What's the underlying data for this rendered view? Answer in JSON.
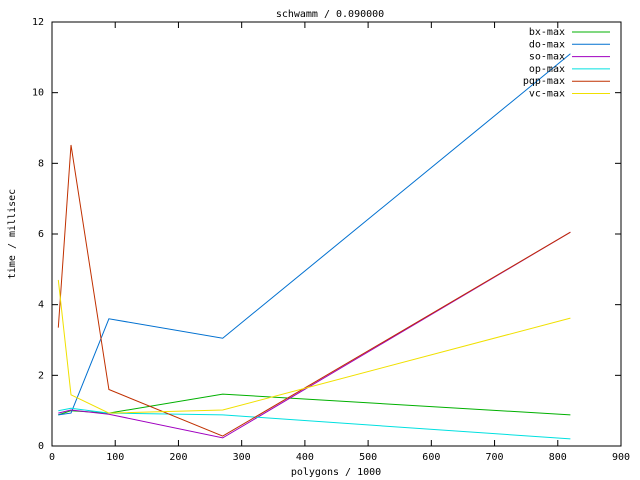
{
  "chart_data": {
    "type": "line",
    "title": "schwamm / 0.090000",
    "x_label": "polygons / 1000",
    "y_label": "time / millisec",
    "x": [
      10,
      30,
      90,
      270,
      820
    ],
    "xlim": [
      0,
      900
    ],
    "xticks": [
      0,
      100,
      200,
      300,
      400,
      500,
      600,
      700,
      800,
      900
    ],
    "ylim": [
      0,
      12
    ],
    "yticks": [
      0,
      2,
      4,
      6,
      8,
      10,
      12
    ],
    "legend": "top-right",
    "series": [
      {
        "name": "bx-max",
        "color": "#00b000",
        "values": [
          0.88,
          1.0,
          0.93,
          1.47,
          0.88
        ]
      },
      {
        "name": "do-max",
        "color": "#0070d0",
        "values": [
          0.88,
          0.93,
          3.6,
          3.05,
          11.1
        ]
      },
      {
        "name": "so-max",
        "color": "#a000c0",
        "values": [
          0.93,
          1.02,
          0.9,
          0.23,
          6.05
        ]
      },
      {
        "name": "op-max",
        "color": "#00e0e0",
        "values": [
          1.0,
          1.07,
          0.93,
          0.88,
          0.2
        ]
      },
      {
        "name": "pqp-max",
        "color": "#c03000",
        "values": [
          3.35,
          8.52,
          1.6,
          0.28,
          6.05
        ]
      },
      {
        "name": "vc-max",
        "color": "#f0e000",
        "values": [
          4.7,
          1.45,
          0.93,
          1.02,
          3.62
        ]
      }
    ]
  }
}
